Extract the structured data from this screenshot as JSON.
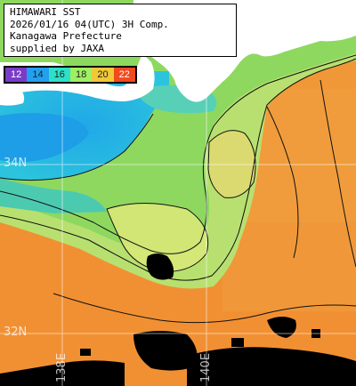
{
  "header": {
    "lines": [
      "HIMAWARI SST",
      "2026/01/16 04(UTC) 3H Comp.",
      "Kanagawa Prefecture",
      "supplied by JAXA"
    ]
  },
  "colorbar": {
    "labels": [
      "12",
      "14",
      "16",
      "18",
      "20",
      "22"
    ],
    "colors": [
      "#7a3cc8",
      "#22a0f0",
      "#2ee0c8",
      "#9ef060",
      "#f0c838",
      "#f04a1e"
    ]
  },
  "lat_labels": [
    "34N",
    "32N"
  ],
  "lon_labels": [
    "138E",
    "140E"
  ],
  "colors": {
    "land": "#ffffff",
    "cold_water": "#26b4e6",
    "mid_water": "#90d86a",
    "warm_water": "#f2a03c",
    "cloud": "#000000",
    "grid": "#ffffff"
  }
}
